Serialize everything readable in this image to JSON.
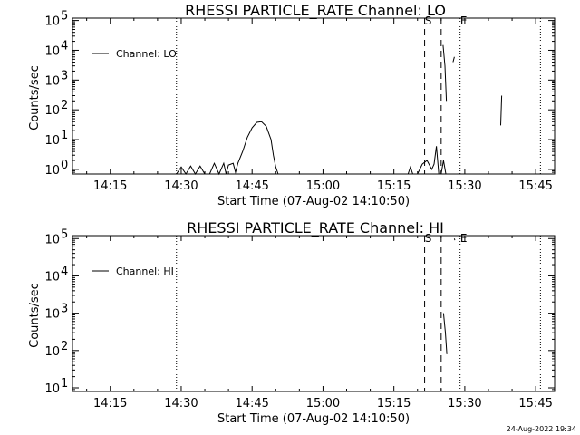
{
  "chart_data": [
    {
      "type": "line",
      "title": "RHESSI PARTICLE_RATE Channel: LO",
      "xlabel": "Start Time (07-Aug-02 14:10:50)",
      "ylabel": "Counts/sec",
      "y_scale": "log",
      "ylim": [
        0.7,
        120000
      ],
      "xlim": [
        "14:07",
        "15:49"
      ],
      "x_tick_labels": [
        "14:15",
        "14:30",
        "14:45",
        "15:00",
        "15:15",
        "15:30",
        "15:45"
      ],
      "y_tick_labels": [
        {
          "base": "10",
          "exp": "0",
          "value": 1
        },
        {
          "base": "10",
          "exp": "1",
          "value": 10
        },
        {
          "base": "10",
          "exp": "2",
          "value": 100
        },
        {
          "base": "10",
          "exp": "3",
          "value": 1000
        },
        {
          "base": "10",
          "exp": "4",
          "value": 10000
        },
        {
          "base": "10",
          "exp": "5",
          "value": 100000
        }
      ],
      "legend": {
        "label": "Channel: LO",
        "placement": "top-left"
      },
      "markers": [
        {
          "label": "S",
          "time": "15:21:30",
          "style": "dashed"
        },
        {
          "label": "",
          "time": "15:25:00",
          "style": "dashed"
        },
        {
          "label": "E",
          "time": "15:29:00",
          "style": "dotted"
        }
      ],
      "extra_lines": [
        {
          "time": "14:29:00",
          "style": "dotted"
        },
        {
          "time": "15:46:00",
          "style": "dotted"
        }
      ],
      "series": [
        {
          "name": "Channel: LO",
          "points": [
            [
              "14:07",
              0.7
            ],
            [
              "14:29",
              0.7
            ],
            [
              "14:29",
              0.7
            ],
            [
              "14:30",
              1.2
            ],
            [
              "14:31",
              0.7
            ],
            [
              "14:32",
              1.3
            ],
            [
              "14:33",
              0.7
            ],
            [
              "14:34",
              1.3
            ],
            [
              "14:35",
              0.7
            ],
            [
              "14:36",
              0.7
            ],
            [
              "14:37",
              1.6
            ],
            [
              "14:38",
              0.7
            ],
            [
              "14:39",
              1.6
            ],
            [
              "14:39.5",
              0.7
            ],
            [
              "14:40",
              1.4
            ],
            [
              "14:41",
              1.6
            ],
            [
              "14:41.5",
              0.8
            ],
            [
              "14:42",
              1.6
            ],
            [
              "14:43",
              4
            ],
            [
              "14:44",
              12
            ],
            [
              "14:45",
              25
            ],
            [
              "14:46",
              38
            ],
            [
              "14:47",
              40
            ],
            [
              "14:48",
              28
            ],
            [
              "14:49",
              10
            ],
            [
              "14:49.5",
              3
            ],
            [
              "14:50",
              1.2
            ],
            [
              "14:50.5",
              0.7
            ],
            [
              "15:18",
              0.7
            ],
            [
              "15:18.5",
              1.2
            ],
            [
              "15:19",
              0.7
            ],
            [
              "15:20",
              0.7
            ],
            [
              "15:21",
              1.5
            ],
            [
              "15:22",
              2
            ],
            [
              "15:23",
              1
            ],
            [
              "15:23.5",
              1.5
            ],
            [
              "15:24",
              6
            ],
            [
              "15:24.5",
              0.7
            ],
            [
              "15:25",
              0.7
            ],
            [
              "15:25.5",
              2
            ],
            [
              "15:26",
              0.7
            ],
            [
              "15:49",
              0.7
            ]
          ]
        },
        {
          "name": "",
          "points": [
            [
              "15:25.4",
              15000
            ],
            [
              "15:25.8",
              3000
            ],
            [
              "15:26.1",
              200
            ]
          ]
        },
        {
          "name": "",
          "points": [
            [
              "15:27.5",
              4000
            ],
            [
              "15:27.8",
              6000
            ]
          ]
        },
        {
          "name": "",
          "points": [
            [
              "15:37.6",
              30
            ],
            [
              "15:37.8",
              300
            ]
          ]
        }
      ]
    },
    {
      "type": "line",
      "title": "RHESSI PARTICLE_RATE Channel: HI",
      "xlabel": "Start Time (07-Aug-02 14:10:50)",
      "ylabel": "Counts/sec",
      "y_scale": "log",
      "ylim": [
        8,
        120000
      ],
      "xlim": [
        "14:07",
        "15:49"
      ],
      "x_tick_labels": [
        "14:15",
        "14:30",
        "14:45",
        "15:00",
        "15:15",
        "15:30",
        "15:45"
      ],
      "y_tick_labels": [
        {
          "base": "10",
          "exp": "1",
          "value": 10
        },
        {
          "base": "10",
          "exp": "2",
          "value": 100
        },
        {
          "base": "10",
          "exp": "3",
          "value": 1000
        },
        {
          "base": "10",
          "exp": "4",
          "value": 10000
        },
        {
          "base": "10",
          "exp": "5",
          "value": 100000
        }
      ],
      "legend": {
        "label": "Channel: HI",
        "placement": "top-left"
      },
      "markers": [
        {
          "label": "S",
          "time": "15:21:30",
          "style": "dashed"
        },
        {
          "label": "",
          "time": "15:25:00",
          "style": "dashed"
        },
        {
          "label": "E",
          "time": "15:29:00",
          "style": "dotted"
        }
      ],
      "extra_lines": [
        {
          "time": "14:29:00",
          "style": "dotted"
        },
        {
          "time": "15:46:00",
          "style": "dotted"
        }
      ],
      "series": [
        {
          "name": "Channel: HI",
          "points": [
            [
              "15:25.5",
              1000
            ],
            [
              "15:25.9",
              300
            ],
            [
              "15:26.2",
              80
            ]
          ]
        },
        {
          "name": "",
          "points": [
            [
              "15:27.8",
              100000
            ],
            [
              "15:27.9",
              90000
            ]
          ]
        }
      ]
    }
  ],
  "footer": {
    "date": "24-Aug-2022 19:34"
  }
}
